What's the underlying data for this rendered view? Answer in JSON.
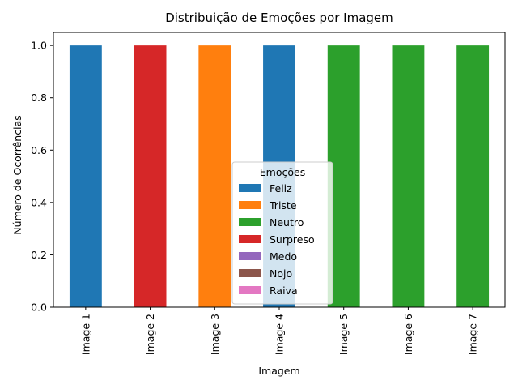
{
  "chart_data": {
    "type": "bar",
    "stacked": true,
    "title": "Distribuição de Emoções por Imagem",
    "xlabel": "Imagem",
    "ylabel": "Número de Ocorrências",
    "categories": [
      "Image 1",
      "Image 2",
      "Image 3",
      "Image 4",
      "Image 5",
      "Image 6",
      "Image 7"
    ],
    "ylim": [
      0,
      1.05
    ],
    "yticks": [
      "0.0",
      "0.2",
      "0.4",
      "0.6",
      "0.8",
      "1.0"
    ],
    "legend_title": "Emoções",
    "legend_position": "lower center",
    "grid": false,
    "series": [
      {
        "name": "Feliz",
        "color": "#1f77b4",
        "values": [
          1,
          0,
          0,
          1,
          0,
          0,
          0
        ]
      },
      {
        "name": "Triste",
        "color": "#ff7f0e",
        "values": [
          0,
          0,
          1,
          0,
          0,
          0,
          0
        ]
      },
      {
        "name": "Neutro",
        "color": "#2ca02c",
        "values": [
          0,
          0,
          0,
          0,
          1,
          1,
          1
        ]
      },
      {
        "name": "Surpreso",
        "color": "#d62728",
        "values": [
          0,
          1,
          0,
          0,
          0,
          0,
          0
        ]
      },
      {
        "name": "Medo",
        "color": "#9467bd",
        "values": [
          0,
          0,
          0,
          0,
          0,
          0,
          0
        ]
      },
      {
        "name": "Nojo",
        "color": "#8c564b",
        "values": [
          0,
          0,
          0,
          0,
          0,
          0,
          0
        ]
      },
      {
        "name": "Raiva",
        "color": "#e377c2",
        "values": [
          0,
          0,
          0,
          0,
          0,
          0,
          0
        ]
      }
    ]
  }
}
